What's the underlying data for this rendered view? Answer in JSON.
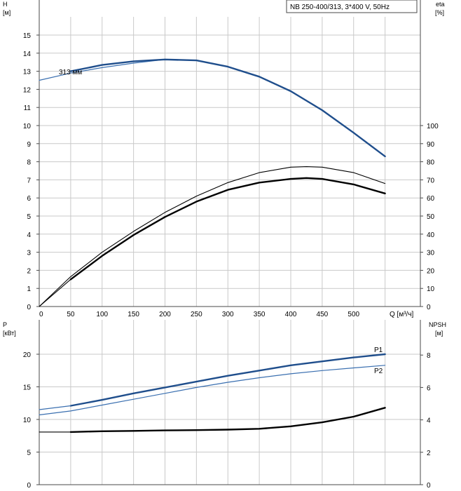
{
  "legend_text": "NB 250-400/313, 3*400 V, 50Hz",
  "colors": {
    "blue": "#1f4e8c",
    "light_blue": "#3a6fb0",
    "black": "#000000",
    "grid": "#c9c9c9"
  },
  "chart_data": [
    {
      "name": "top",
      "type": "line",
      "x_ticks": [
        0,
        50,
        100,
        150,
        200,
        250,
        300,
        350,
        400,
        450,
        500
      ],
      "x_unit_label": "Q [м³/ч]",
      "xlim": [
        0,
        600
      ],
      "left_axis": {
        "label": "H",
        "unit": "[м]",
        "range": [
          0,
          16
        ],
        "ticks": [
          0,
          1,
          2,
          3,
          4,
          5,
          6,
          7,
          8,
          9,
          10,
          11,
          12,
          13,
          14,
          15
        ]
      },
      "right_axis": {
        "label": "eta",
        "unit": "[%]",
        "range": [
          0,
          160
        ],
        "ticks": [
          0,
          10,
          20,
          30,
          40,
          50,
          60,
          70,
          80,
          90,
          100
        ]
      },
      "series": [
        {
          "name": "313 мм",
          "axis": "left",
          "style": "thin-blue",
          "x": [
            0,
            50,
            100,
            150,
            200
          ],
          "y": [
            12.5,
            12.9,
            13.2,
            13.45,
            13.65
          ]
        },
        {
          "axis": "left",
          "style": "thick-blue",
          "x": [
            50,
            100,
            150,
            200,
            250,
            300,
            350,
            400,
            450,
            500,
            550
          ],
          "y": [
            13.0,
            13.35,
            13.55,
            13.65,
            13.6,
            13.25,
            12.7,
            11.9,
            10.85,
            9.6,
            8.3
          ]
        },
        {
          "axis": "right",
          "style": "thin-black",
          "x": [
            0,
            50,
            100,
            150,
            200,
            250,
            300,
            350,
            400,
            425,
            450,
            500,
            550
          ],
          "y": [
            0,
            16.5,
            30,
            41.5,
            52,
            61,
            68.5,
            74,
            77,
            77.3,
            77,
            74,
            68
          ]
        },
        {
          "axis": "right",
          "style": "thick-black",
          "x": [
            50,
            100,
            150,
            200,
            250,
            300,
            350,
            400,
            425,
            450,
            500,
            550
          ],
          "y": [
            15,
            28,
            39.5,
            49.5,
            58,
            64.5,
            68.5,
            70.5,
            71,
            70.5,
            67.5,
            62.5
          ]
        },
        {
          "axis": "right",
          "style": "thin-black",
          "x": [
            0,
            50
          ],
          "y": [
            0,
            15
          ]
        }
      ]
    },
    {
      "name": "bottom",
      "type": "line",
      "xlim": [
        0,
        600
      ],
      "left_axis": {
        "label": "P",
        "unit": "[кВт]",
        "range": [
          0,
          25
        ],
        "ticks": [
          0,
          5,
          10,
          15,
          20
        ]
      },
      "right_axis": {
        "label": "NPSH",
        "unit": "[м]",
        "range": [
          0,
          10
        ],
        "ticks": [
          0,
          2,
          4,
          6,
          8
        ]
      },
      "series": [
        {
          "name": "P1",
          "axis": "left",
          "style": "thick-blue",
          "x": [
            50,
            100,
            150,
            200,
            250,
            300,
            350,
            400,
            450,
            500,
            550
          ],
          "y": [
            12.1,
            13.0,
            14.0,
            14.9,
            15.8,
            16.7,
            17.5,
            18.3,
            18.9,
            19.5,
            20.0
          ]
        },
        {
          "axis": "left",
          "style": "thin-blue",
          "x": [
            0,
            50
          ],
          "y": [
            11.5,
            12.1
          ]
        },
        {
          "name": "P2",
          "axis": "left",
          "style": "thin-blue",
          "x": [
            0,
            50,
            100,
            150,
            200,
            250,
            300,
            350,
            400,
            450,
            500,
            550
          ],
          "y": [
            10.7,
            11.3,
            12.2,
            13.1,
            14.0,
            14.9,
            15.7,
            16.4,
            17.0,
            17.5,
            17.9,
            18.3
          ]
        },
        {
          "name": "NPSH",
          "axis": "right",
          "style": "thick-black",
          "x": [
            50,
            100,
            150,
            200,
            250,
            300,
            350,
            400,
            450,
            500,
            550
          ],
          "y": [
            3.25,
            3.3,
            3.32,
            3.35,
            3.37,
            3.4,
            3.45,
            3.6,
            3.85,
            4.2,
            4.75
          ]
        },
        {
          "axis": "right",
          "style": "thin-black",
          "x": [
            0,
            50
          ],
          "y": [
            3.25,
            3.25
          ]
        }
      ]
    }
  ]
}
